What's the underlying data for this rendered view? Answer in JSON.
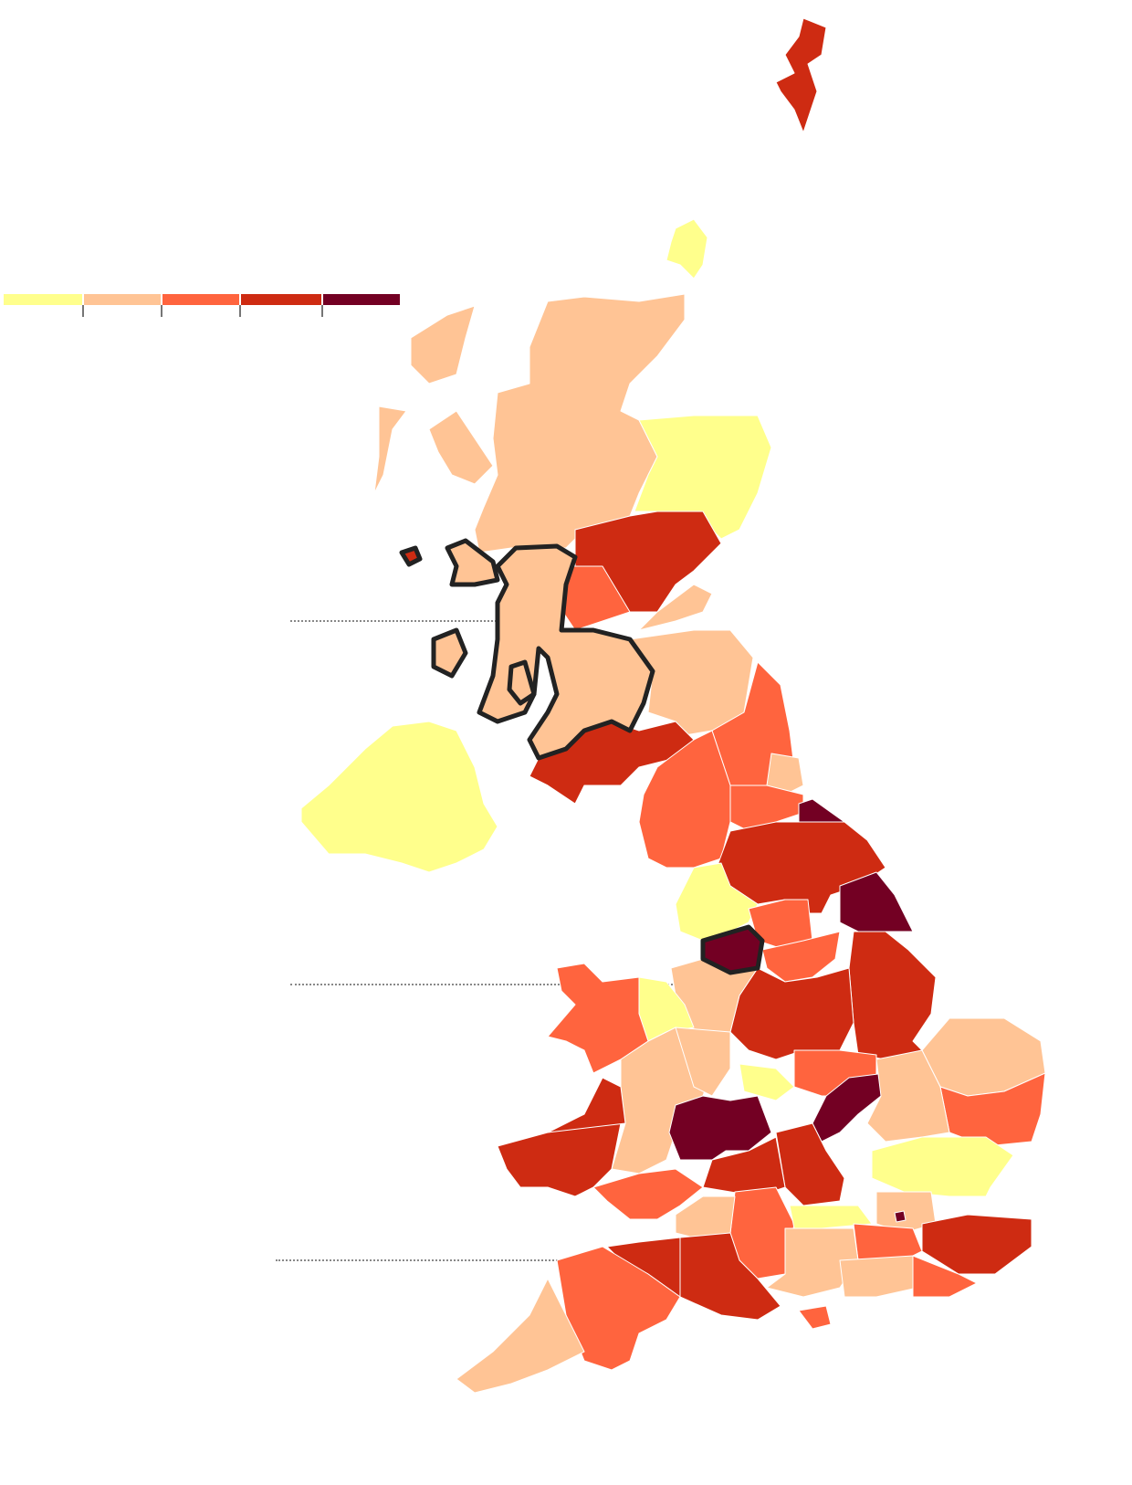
{
  "legend": {
    "colors": [
      "#ffff8c",
      "#ffc495",
      "#ff643e",
      "#ce2b12",
      "#730023"
    ],
    "tick_color": "#767676"
  },
  "highlight_outline_color": "#222222",
  "map_icon": "uk-choropleth-map"
}
